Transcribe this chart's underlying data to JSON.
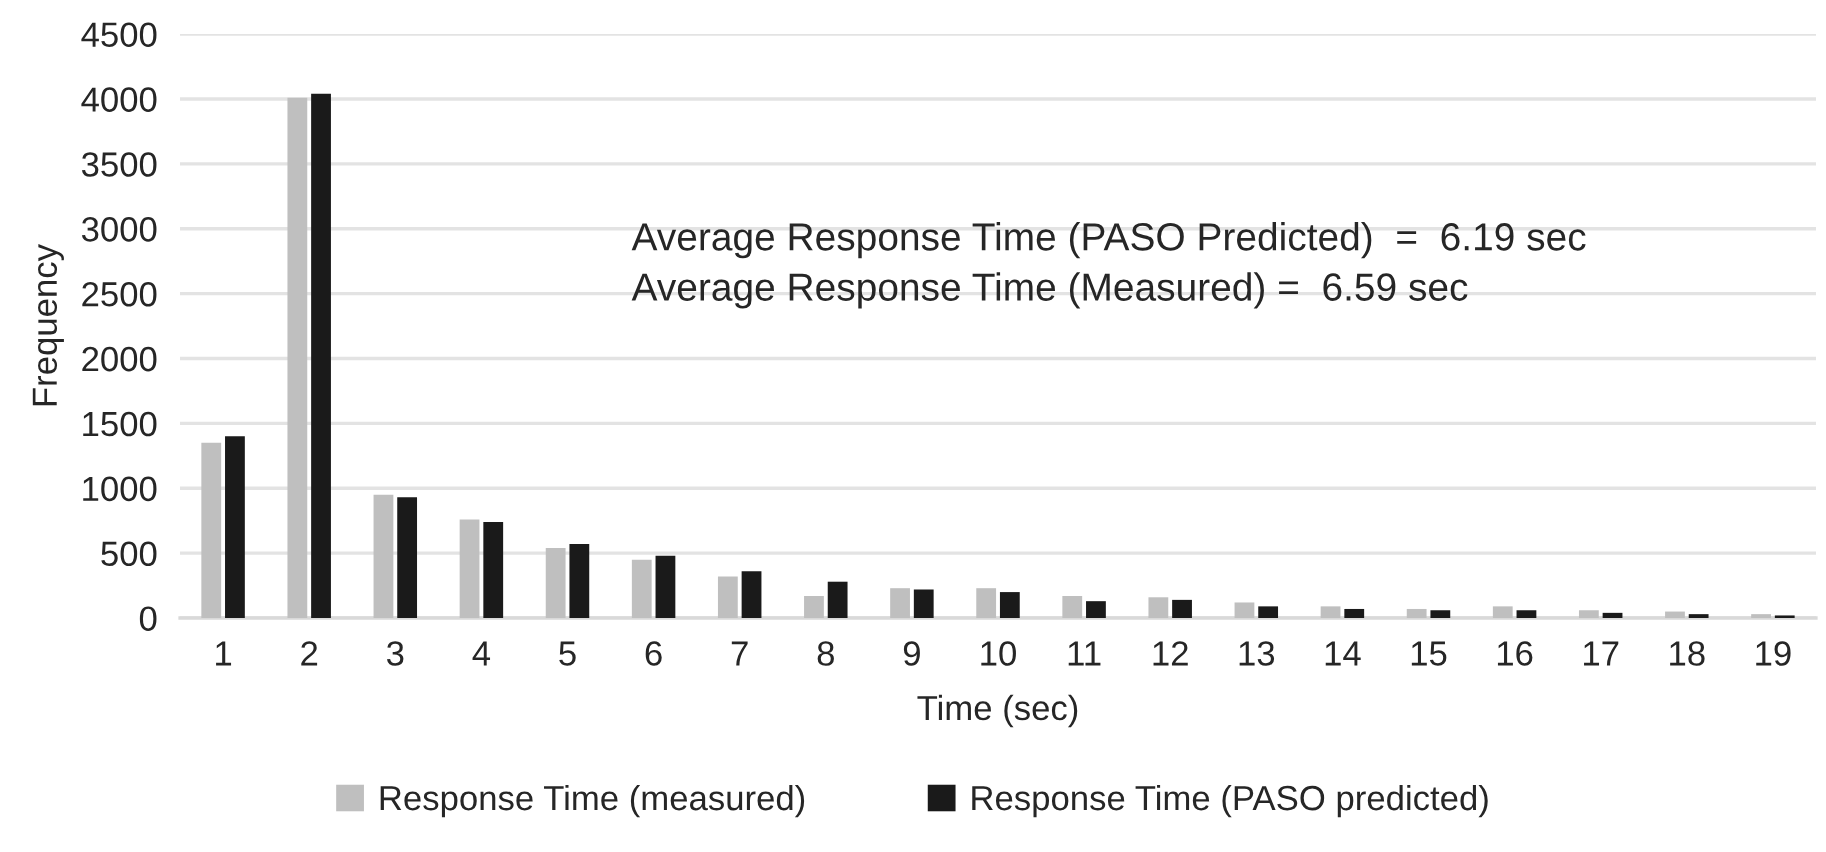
{
  "chart_data": {
    "type": "bar",
    "xlabel": "Time (sec)",
    "ylabel": "Frequency",
    "categories": [
      "1",
      "2",
      "3",
      "4",
      "5",
      "6",
      "7",
      "8",
      "9",
      "10",
      "11",
      "12",
      "13",
      "14",
      "15",
      "16",
      "17",
      "18",
      "19"
    ],
    "series": [
      {
        "name": "Response Time (measured)",
        "color": "#bfbfbf",
        "values": [
          1350,
          4010,
          950,
          760,
          540,
          450,
          320,
          170,
          230,
          230,
          170,
          160,
          120,
          90,
          70,
          90,
          60,
          50,
          30
        ]
      },
      {
        "name": "Response Time (PASO predicted)",
        "color": "#1a1a1a",
        "values": [
          1400,
          4040,
          930,
          740,
          570,
          480,
          360,
          280,
          220,
          200,
          130,
          140,
          90,
          70,
          60,
          60,
          40,
          30,
          20
        ]
      }
    ],
    "ylim": [
      0,
      4500
    ],
    "yticks": [
      0,
      500,
      1000,
      1500,
      2000,
      2500,
      3000,
      3500,
      4000,
      4500
    ],
    "grid": "y",
    "legend": "bottom",
    "annotations": [
      "Average Response Time (PASO Predicted)  =  6.19 sec",
      "Average Response Time (Measured) =  6.59 sec"
    ]
  }
}
